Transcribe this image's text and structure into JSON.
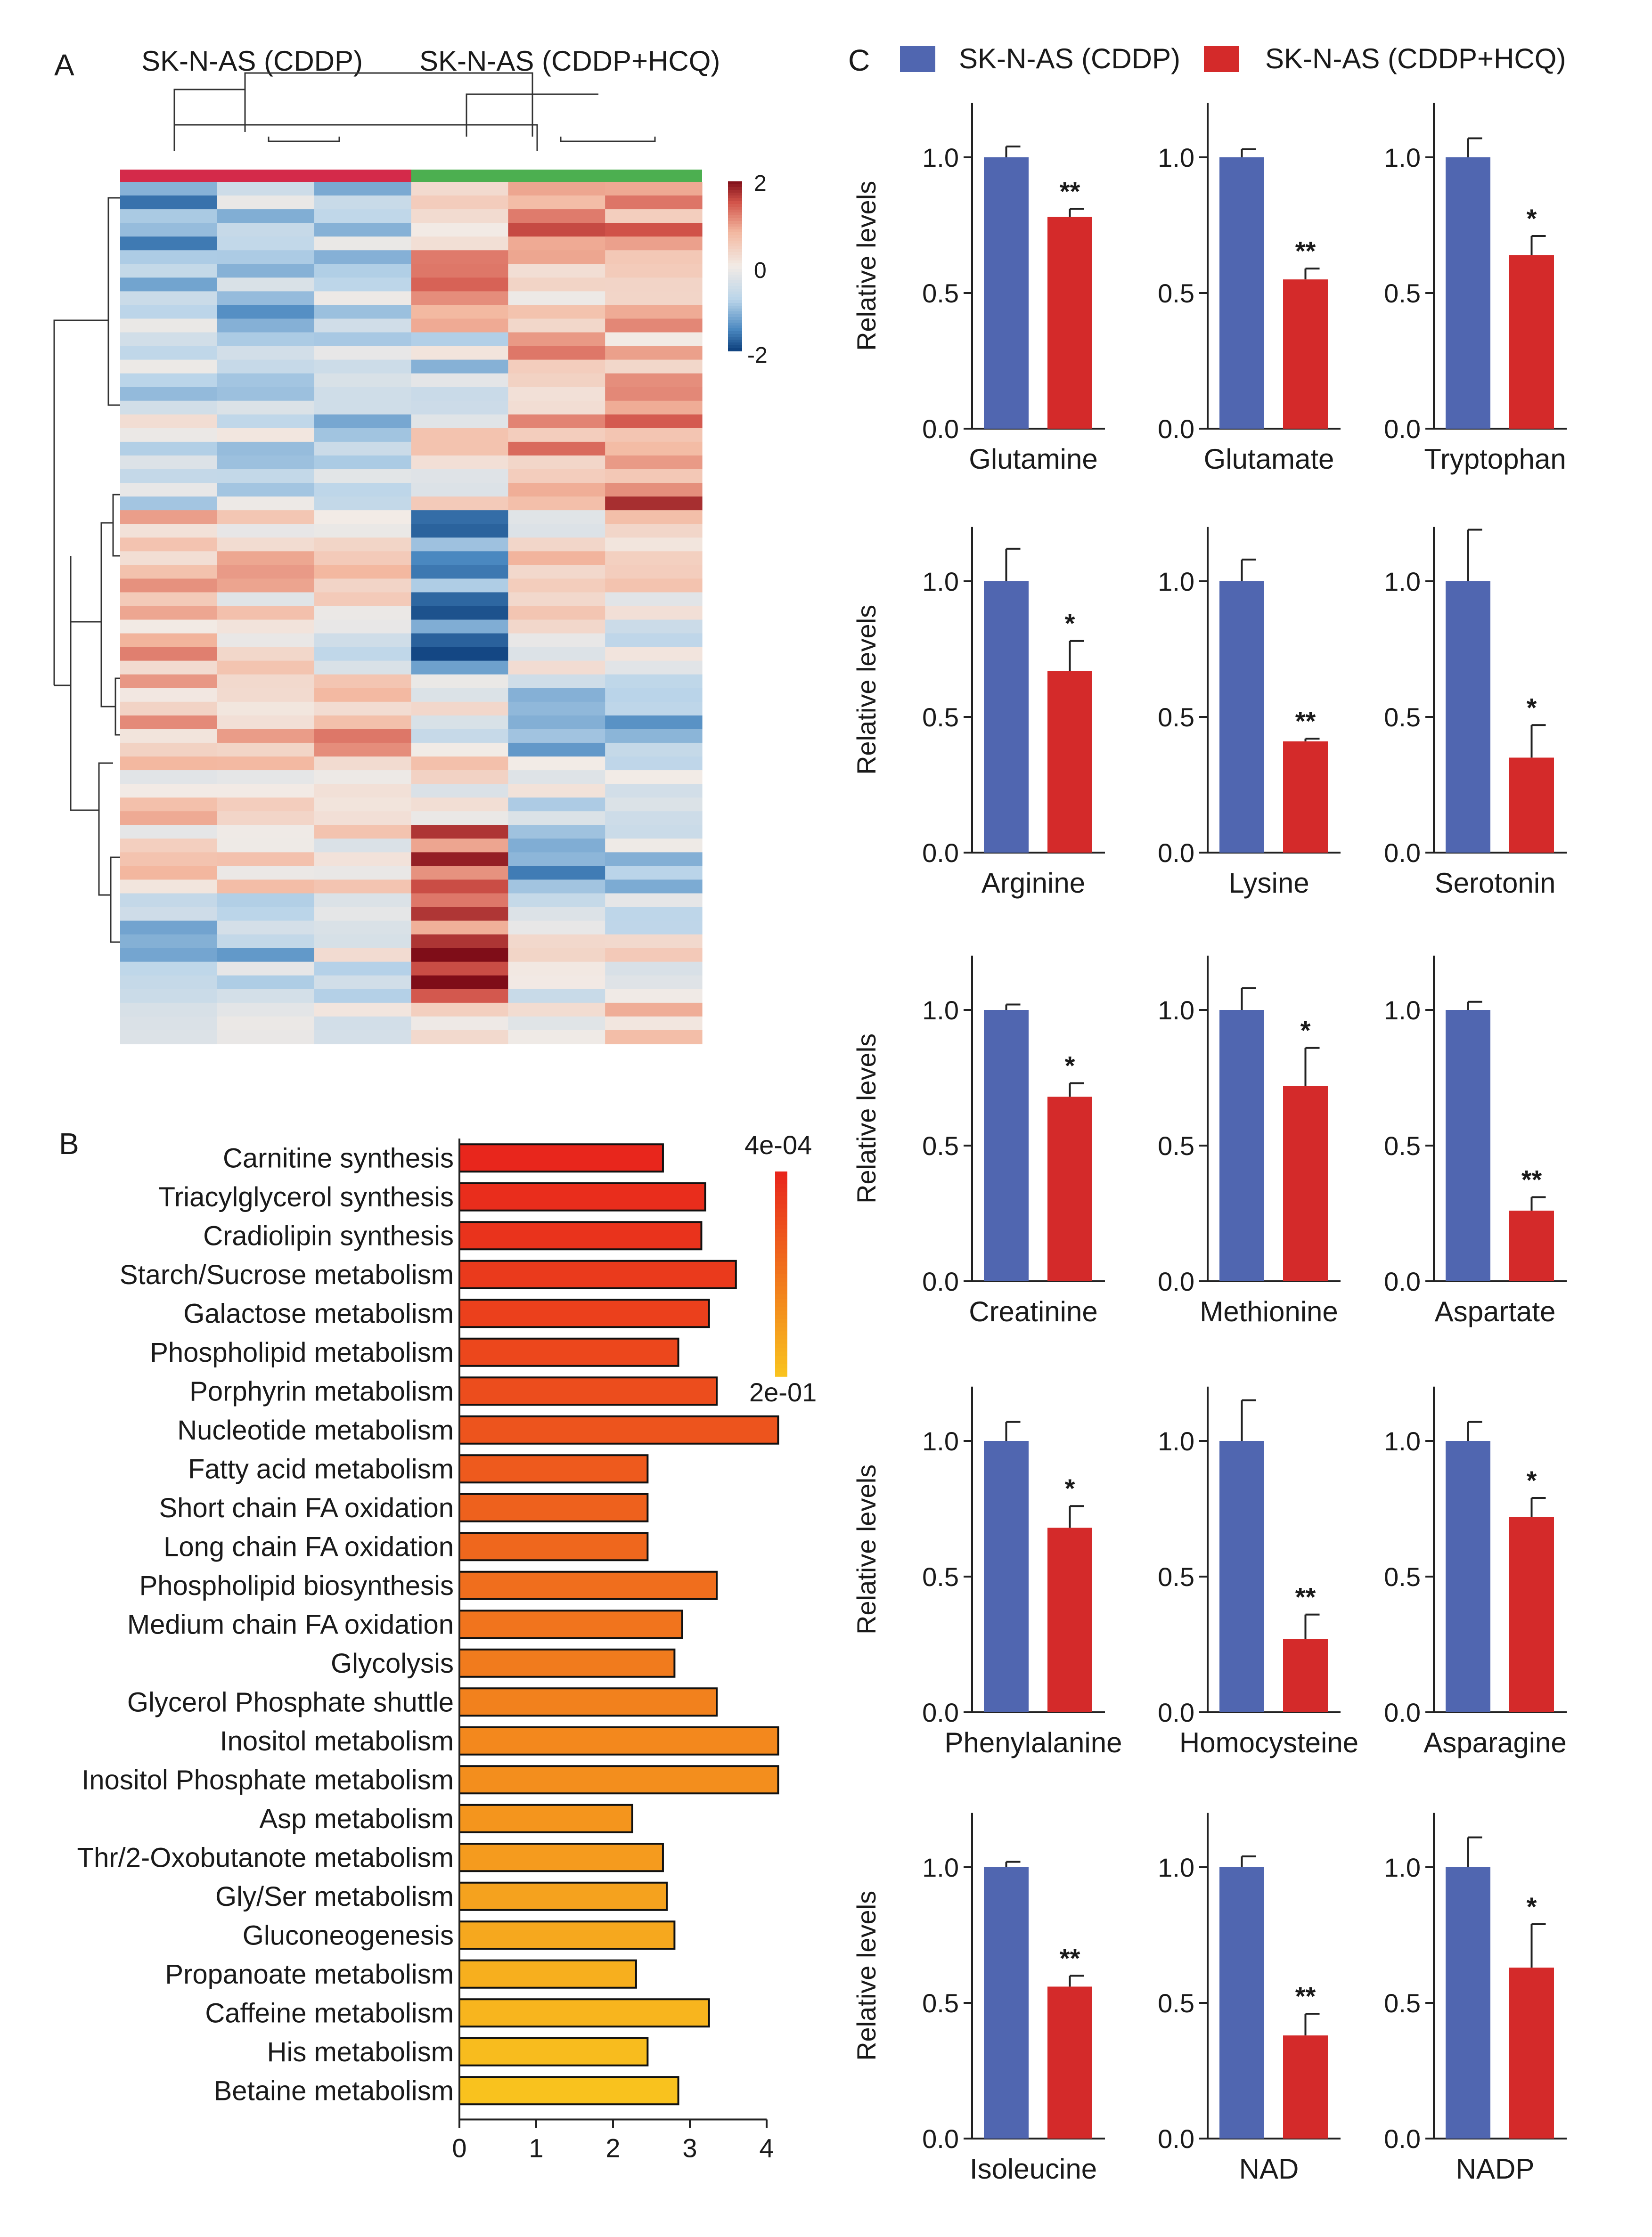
{
  "panels": {
    "a": "A",
    "b": "B",
    "c": "C"
  },
  "colors": {
    "cddp": "#5066b0",
    "hcq": "#d42a2a",
    "group_a": "#d42a4a",
    "group_b": "#4caf50"
  },
  "heatmap": {
    "group_labels": [
      "SK-N-AS (CDDP)",
      "SK-N-AS (CDDP+HCQ)"
    ],
    "colorbar": {
      "max": "2",
      "mid": "0",
      "min": "-2"
    }
  },
  "legend": {
    "cddp": "SK-N-AS (CDDP)",
    "hcq": "SK-N-AS (CDDP+HCQ)"
  },
  "chart_data": [
    {
      "type": "heatmap",
      "title": "",
      "columns": [
        "SK-N-AS (CDDP)",
        "SK-N-AS (CDDP)",
        "SK-N-AS (CDDP)",
        "SK-N-AS (CDDP+HCQ)",
        "SK-N-AS (CDDP+HCQ)",
        "SK-N-AS (CDDP+HCQ)"
      ],
      "color_range": [
        -2,
        2
      ],
      "cluster_blocks": [
        {
          "rows": 6,
          "values": [
            -1.1,
            -0.6,
            -0.7,
            0.6,
            1.0,
            0.9
          ]
        },
        {
          "rows": 5,
          "values": [
            -0.7,
            -0.9,
            -0.4,
            0.9,
            0.4,
            0.7
          ]
        },
        {
          "rows": 6,
          "values": [
            -0.4,
            -0.8,
            -0.6,
            -0.5,
            0.7,
            0.5
          ]
        },
        {
          "rows": 7,
          "values": [
            -0.3,
            -0.4,
            -0.6,
            0.2,
            0.9,
            1.2
          ]
        },
        {
          "rows": 6,
          "values": [
            0.7,
            0.4,
            0.3,
            -1.5,
            0.3,
            0.2
          ]
        },
        {
          "rows": 6,
          "values": [
            0.6,
            0.3,
            -0.1,
            -1.8,
            0.1,
            -0.1
          ]
        },
        {
          "rows": 6,
          "values": [
            0.6,
            0.7,
            0.8,
            0.0,
            -1.0,
            -0.8
          ]
        },
        {
          "rows": 5,
          "values": [
            0.3,
            0.2,
            0.4,
            0.1,
            -0.4,
            -0.6
          ]
        },
        {
          "rows": 5,
          "values": [
            0.3,
            0.1,
            0.2,
            1.4,
            -1.0,
            -0.6
          ]
        },
        {
          "rows": 4,
          "values": [
            -0.6,
            -0.4,
            -0.3,
            1.5,
            -0.3,
            -0.2
          ]
        },
        {
          "rows": 4,
          "values": [
            -0.8,
            -0.7,
            -0.2,
            1.8,
            -0.1,
            0.2
          ]
        },
        {
          "rows": 3,
          "values": [
            0.2,
            0.1,
            0.1,
            0.4,
            0.2,
            0.3
          ]
        }
      ]
    },
    {
      "type": "bar",
      "orientation": "horizontal",
      "title": "",
      "categories": [
        "Carnitine synthesis",
        "Triacylglycerol synthesis",
        "Cradiolipin synthesis",
        "Starch/Sucrose metabolism",
        "Galactose metabolism",
        "Phospholipid metabolism",
        "Porphyrin metabolism",
        "Nucleotide metabolism",
        "Fatty acid metabolism",
        "Short chain FA oxidation",
        "Long chain FA oxidation",
        "Phospholipid biosynthesis",
        "Medium chain FA oxidation",
        "Glycolysis",
        "Glycerol Phosphate shuttle",
        "Inositol metabolism",
        "Inositol Phosphate metabolism",
        "Asp metabolism",
        "Thr/2-Oxobutanote metabolism",
        "Gly/Ser metabolism",
        "Gluconeogenesis",
        "Propanoate metabolism",
        "Caffeine metabolism",
        "His metabolism",
        "Betaine metabolism"
      ],
      "values": [
        2.65,
        3.2,
        3.15,
        3.6,
        3.25,
        2.85,
        3.35,
        4.15,
        2.45,
        2.45,
        2.45,
        3.35,
        2.9,
        2.8,
        3.35,
        4.15,
        4.15,
        2.25,
        2.65,
        2.7,
        2.8,
        2.3,
        3.25,
        2.45,
        2.85
      ],
      "xlim": [
        0,
        4.2
      ],
      "xticks": [
        "0",
        "1",
        "2",
        "3",
        "4"
      ],
      "colorbar": {
        "top": "4e-04",
        "bottom": "2e-01"
      },
      "color_scale": [
        "#e8261c",
        "#f9c21e"
      ]
    },
    {
      "type": "bar",
      "title": "",
      "ylabel": "Relative levels",
      "ylim": [
        0,
        1.2
      ],
      "yticks": [
        "0.0",
        "0.5",
        "1.0"
      ],
      "series": [
        {
          "name": "SK-N-AS (CDDP)"
        },
        {
          "name": "SK-N-AS (CDDP+HCQ)"
        }
      ],
      "subplots": [
        {
          "name": "Glutamine",
          "values": [
            1.0,
            0.78
          ],
          "errors": [
            0.04,
            0.03
          ],
          "sig": "**"
        },
        {
          "name": "Glutamate",
          "values": [
            1.0,
            0.55
          ],
          "errors": [
            0.03,
            0.04
          ],
          "sig": "**"
        },
        {
          "name": "Tryptophan",
          "values": [
            1.0,
            0.64
          ],
          "errors": [
            0.07,
            0.07
          ],
          "sig": "*"
        },
        {
          "name": "Arginine",
          "values": [
            1.0,
            0.67
          ],
          "errors": [
            0.12,
            0.11
          ],
          "sig": "*"
        },
        {
          "name": "Lysine",
          "values": [
            1.0,
            0.41
          ],
          "errors": [
            0.08,
            0.01
          ],
          "sig": "**"
        },
        {
          "name": "Serotonin",
          "values": [
            1.0,
            0.35
          ],
          "errors": [
            0.19,
            0.12
          ],
          "sig": "*"
        },
        {
          "name": "Creatinine",
          "values": [
            1.0,
            0.68
          ],
          "errors": [
            0.02,
            0.05
          ],
          "sig": "*"
        },
        {
          "name": "Methionine",
          "values": [
            1.0,
            0.72
          ],
          "errors": [
            0.08,
            0.14
          ],
          "sig": "*"
        },
        {
          "name": "Aspartate",
          "values": [
            1.0,
            0.26
          ],
          "errors": [
            0.03,
            0.05
          ],
          "sig": "**"
        },
        {
          "name": "Phenylalanine",
          "values": [
            1.0,
            0.68
          ],
          "errors": [
            0.07,
            0.08
          ],
          "sig": "*"
        },
        {
          "name": "Homocysteine",
          "values": [
            1.0,
            0.27
          ],
          "errors": [
            0.15,
            0.09
          ],
          "sig": "**"
        },
        {
          "name": "Asparagine",
          "values": [
            1.0,
            0.72
          ],
          "errors": [
            0.07,
            0.07
          ],
          "sig": "*"
        },
        {
          "name": "Isoleucine",
          "values": [
            1.0,
            0.56
          ],
          "errors": [
            0.02,
            0.04
          ],
          "sig": "**"
        },
        {
          "name": "NAD",
          "values": [
            1.0,
            0.38
          ],
          "errors": [
            0.04,
            0.08
          ],
          "sig": "**"
        },
        {
          "name": "NADP",
          "values": [
            1.0,
            0.63
          ],
          "errors": [
            0.11,
            0.16
          ],
          "sig": "*"
        }
      ]
    }
  ]
}
